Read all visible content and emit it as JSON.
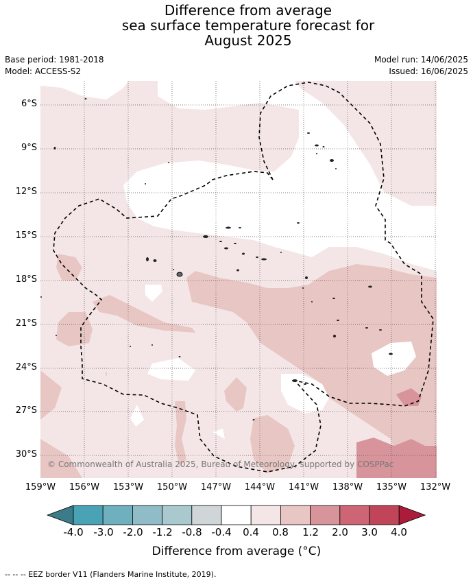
{
  "title_lines": [
    "Difference from average",
    "sea surface temperature forecast for",
    "August 2025"
  ],
  "base_period": "Base period: 1981-2018",
  "model": "Model: ACCESS-S2",
  "model_run": "Model run: 14/06/2025",
  "issued": "Issued: 16/06/2025",
  "latitude_labels": [
    "6°S",
    "9°S",
    "12°S",
    "15°S",
    "18°S",
    "21°S",
    "24°S",
    "27°S",
    "30°S"
  ],
  "longitude_labels": [
    "159°W",
    "156°W",
    "153°W",
    "150°W",
    "147°W",
    "144°W",
    "141°W",
    "138°W",
    "135°W",
    "132°W"
  ],
  "copyright": "© Commonwealth of Australia 2025, Bureau of Meteorology, supported by COSPPac",
  "colorbar": {
    "labels": [
      "-4.0",
      "-3.0",
      "-2.0",
      "-1.2",
      "-0.8",
      "-0.4",
      "0.4",
      "0.8",
      "1.2",
      "2.0",
      "3.0",
      "4.0"
    ],
    "colors": [
      "#3c7c89",
      "#4aa3b4",
      "#6fb0bf",
      "#8fbcc7",
      "#aac9cf",
      "#d0d6d8",
      "#ffffff",
      "#f4e6e6",
      "#e8c6c4",
      "#d7949a",
      "#cd6574",
      "#c14558",
      "#ab1c3a"
    ],
    "title": "Difference from average (°C)"
  },
  "footnote": "--  --  -- EEZ border V11 (Flanders Marine Institute, 2019).",
  "map_fill_colors": {
    "white": "#ffffff",
    "light": "#f4e6e6",
    "medium": "#e8c6c4",
    "strong": "#d7949a"
  }
}
